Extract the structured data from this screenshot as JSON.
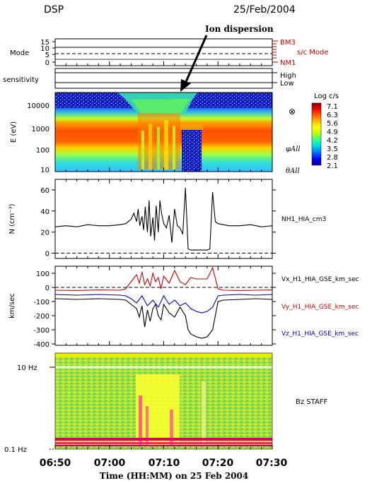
{
  "header": {
    "left": "DSP",
    "right": "25/Feb/2004"
  },
  "annotation": {
    "label": "Ion dispersion"
  },
  "mode_panel": {
    "ylabel": "Mode",
    "yticks": [
      "15",
      "10",
      "5",
      "0"
    ],
    "right_ticks": [
      "BM3",
      "NM1"
    ],
    "right_label": "s/c Mode",
    "color": "#cc0000"
  },
  "sensitivity_panel": {
    "ylabel": "sensitivity",
    "right_ticks": [
      "High",
      "Low"
    ]
  },
  "spectrogram": {
    "ylabel": "E (eV)",
    "yticks": [
      "10000",
      "1000",
      "100",
      "10"
    ],
    "right_labels": [
      "⊗",
      "φAll",
      "θAll"
    ],
    "colorbar": {
      "title": "Log c/s",
      "ticks": [
        "7.1",
        "6.3",
        "5.6",
        "4.9",
        "4.2",
        "3.5",
        "2.8",
        "2.1"
      ],
      "colors": [
        "#000080",
        "#0000ff",
        "#0080ff",
        "#00e0e0",
        "#40ff80",
        "#c0ff00",
        "#ffff00",
        "#ffb000",
        "#ff5000",
        "#e00000",
        "#8b0000"
      ]
    }
  },
  "staff_panel": {
    "yticks": [
      "10 Hz",
      "0.1 Hz"
    ],
    "label": "Bz  STAFF"
  },
  "xaxis": {
    "ticks": [
      "06:50",
      "07:00",
      "07:10",
      "07:20",
      "07:30"
    ],
    "title": "Time (HH:MM) on 25 Feb 2004"
  },
  "chart_data": [
    {
      "type": "line",
      "ylabel": "N (cm⁻³)",
      "yticks": [
        "60",
        "40",
        "20",
        "0"
      ],
      "ylim": [
        -5,
        70
      ],
      "xlim": [
        0,
        40
      ],
      "series": [
        {
          "name": "NH1_HIA_cm3",
          "color": "#000000",
          "x": [
            0,
            2,
            4,
            6,
            8,
            10,
            12,
            13,
            14,
            14.5,
            15,
            15.3,
            15.6,
            16,
            16.3,
            16.6,
            17,
            17.3,
            17.6,
            18,
            18.3,
            18.6,
            19,
            19.3,
            19.6,
            20,
            20.5,
            21,
            21.5,
            22,
            22.5,
            23,
            23.5,
            24,
            24.5,
            25,
            25.5,
            26,
            26.5,
            27,
            27.5,
            28,
            28.5,
            29,
            29.5,
            30,
            31,
            32,
            34,
            36,
            38,
            40
          ],
          "y": [
            25,
            26,
            25,
            27,
            26,
            26,
            27,
            28,
            32,
            38,
            30,
            42,
            26,
            35,
            22,
            44,
            20,
            50,
            16,
            34,
            12,
            45,
            20,
            50,
            38,
            28,
            24,
            36,
            10,
            42,
            26,
            24,
            18,
            62,
            4,
            3,
            3,
            3,
            3,
            3,
            3,
            3,
            4,
            58,
            30,
            28,
            27,
            26,
            26,
            27,
            25,
            26
          ]
        },
        {
          "name": "reference",
          "color": "#000000",
          "dashed": true,
          "x": [
            0,
            40
          ],
          "y": [
            0,
            0
          ]
        }
      ]
    },
    {
      "type": "line",
      "ylabel": "km/sec",
      "yticks": [
        "100",
        "0",
        "-100",
        "-200",
        "-300",
        "-400"
      ],
      "ylim": [
        -410,
        150
      ],
      "xlim": [
        0,
        40
      ],
      "series": [
        {
          "name": "Vx_H1_HIA_GSE_km_sec",
          "color": "#000000",
          "x": [
            0,
            4,
            8,
            12,
            13,
            14,
            15,
            15.5,
            16,
            16.5,
            17,
            17.5,
            18,
            18.5,
            19,
            19.5,
            20,
            21,
            22,
            23,
            24,
            24.5,
            25,
            26,
            27,
            28,
            29,
            30,
            31,
            34,
            37,
            40
          ],
          "y": [
            -80,
            -85,
            -80,
            -85,
            -90,
            -120,
            -150,
            -210,
            -130,
            -280,
            -160,
            -240,
            -150,
            -120,
            -200,
            -230,
            -120,
            -180,
            -210,
            -140,
            -200,
            -300,
            -330,
            -350,
            -360,
            -350,
            -300,
            -100,
            -90,
            -85,
            -80,
            -85
          ]
        },
        {
          "name": "Vy_H1_HIA_GSE_km_sec",
          "color": "#cc0000",
          "x": [
            0,
            4,
            8,
            12,
            13,
            14,
            15,
            15.5,
            16,
            16.5,
            17,
            17.5,
            18,
            18.5,
            19,
            19.5,
            20,
            21,
            22,
            23,
            24,
            25,
            26,
            27,
            28,
            29,
            30,
            31,
            34,
            37,
            40
          ],
          "y": [
            -20,
            -22,
            -18,
            -20,
            -10,
            40,
            90,
            30,
            110,
            20,
            60,
            10,
            100,
            40,
            70,
            -10,
            80,
            30,
            120,
            40,
            20,
            70,
            60,
            60,
            60,
            140,
            -10,
            -20,
            -22,
            -20,
            -18
          ]
        },
        {
          "name": "Vz_H1_HIA_GSE_km_sec",
          "color": "#0000cc",
          "x": [
            0,
            4,
            8,
            12,
            13,
            14,
            15,
            16,
            17,
            18,
            19,
            20,
            21,
            22,
            23,
            24,
            25,
            26,
            27,
            28,
            29,
            30,
            31,
            34,
            37,
            40
          ],
          "y": [
            -50,
            -55,
            -50,
            -55,
            -60,
            -80,
            -110,
            -60,
            -130,
            -90,
            -140,
            -60,
            -120,
            -90,
            -130,
            -110,
            -150,
            -170,
            -180,
            -170,
            -140,
            -60,
            -55,
            -50,
            -55,
            -50
          ]
        },
        {
          "name": "zero",
          "color": "#000000",
          "dashed": true,
          "x": [
            0,
            40
          ],
          "y": [
            0,
            0
          ]
        }
      ]
    }
  ]
}
